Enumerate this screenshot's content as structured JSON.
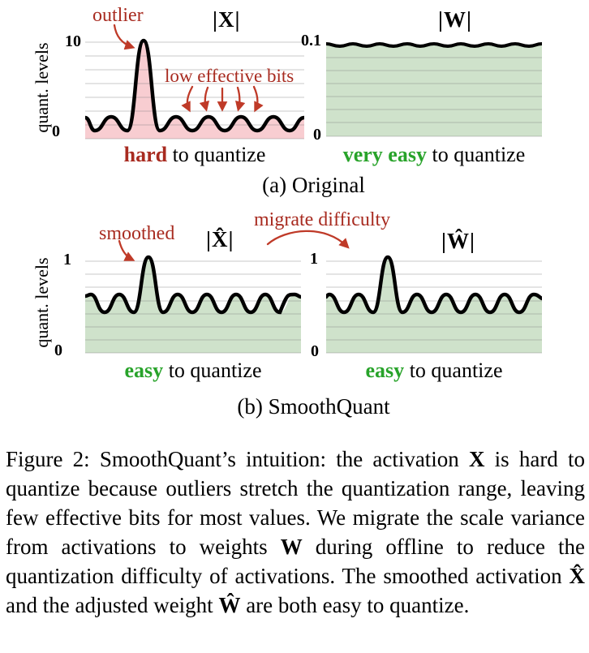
{
  "colors": {
    "annotation_red": "#a82b20",
    "arrow_red": "#bf3a28",
    "green_text": "#28a32a",
    "activation_fill": "#f8cdd1",
    "weight_fill": "#cfe2cb",
    "gridline_gray": "#808080",
    "curve_black": "#000000"
  },
  "panel_a": {
    "label": "(a) Original",
    "x_plot": {
      "title": "|X|",
      "ylabel": "quant. levels",
      "ytick_top": "10",
      "ytick_bottom": "0",
      "annotation_outlier": "outlier",
      "annotation_low_bits": "low effective bits",
      "verdict": [
        {
          "t": "hard",
          "c": "red-bold"
        },
        {
          "t": " to quantize",
          "c": ""
        }
      ]
    },
    "w_plot": {
      "title": "|W|",
      "ytick_top": "0.1",
      "ytick_bottom": "0",
      "verdict": [
        {
          "t": "very easy",
          "c": "green-bold"
        },
        {
          "t": " to quantize",
          "c": ""
        }
      ]
    }
  },
  "panel_b": {
    "label": "(b) SmoothQuant",
    "x_plot": {
      "title": "|X̂|",
      "ylabel": "quant. levels",
      "ytick_top": "1",
      "ytick_bottom": "0",
      "annotation_smoothed": "smoothed",
      "verdict": [
        {
          "t": "easy",
          "c": "green-bold"
        },
        {
          "t": " to quantize",
          "c": ""
        }
      ]
    },
    "w_plot": {
      "title": "|Ŵ|",
      "ytick_top": "1",
      "ytick_bottom": "0",
      "annotation_migrate": "migrate difficulty",
      "verdict": [
        {
          "t": "easy",
          "c": "green-bold"
        },
        {
          "t": " to quantize",
          "c": ""
        }
      ]
    }
  },
  "caption": [
    {
      "t": "Figure 2: SmoothQuant’s intuition: the activation ",
      "c": ""
    },
    {
      "t": "X",
      "c": "m"
    },
    {
      "t": " is hard to quantize because outliers stretch the quantization range, leaving few effective bits for most values. We migrate the scale variance from activations to weights ",
      "c": ""
    },
    {
      "t": "W",
      "c": "m"
    },
    {
      "t": " during offline to reduce the quantization difficulty of activations. The smoothed activation ",
      "c": ""
    },
    {
      "t": "X̂",
      "c": "m"
    },
    {
      "t": " and the adjusted weight ",
      "c": ""
    },
    {
      "t": "Ŵ",
      "c": "m"
    },
    {
      "t": " are both easy to quantize.",
      "c": ""
    }
  ],
  "chart_data": [
    {
      "id": "activation-original",
      "type": "area",
      "title": "|X|",
      "ylabel": "quant. levels",
      "ylim": [
        0,
        10
      ],
      "yticks": [
        0,
        10
      ],
      "gridlines": 8,
      "baseline_wave": {
        "min": 0.9,
        "max": 2.3,
        "n_bumps": 7
      },
      "outlier_peak": {
        "x_frac": 0.27,
        "value": 10
      },
      "fill": "#f8cdd1",
      "verdict": "hard to quantize",
      "annotations": [
        "outlier",
        "low effective bits"
      ]
    },
    {
      "id": "weight-original",
      "type": "area",
      "title": "|W|",
      "ylim": [
        0,
        0.1
      ],
      "yticks": [
        0,
        0.1
      ],
      "gridlines": 8,
      "baseline_wave": {
        "min": 0.096,
        "max": 0.1,
        "n_bumps": 8
      },
      "outlier_peak": null,
      "fill": "#cfe2cb",
      "verdict": "very easy to quantize",
      "annotations": []
    },
    {
      "id": "activation-smoothed",
      "type": "area",
      "title": "|X̂|",
      "ylabel": "quant. levels",
      "ylim": [
        0,
        1
      ],
      "yticks": [
        0,
        1
      ],
      "gridlines": 8,
      "baseline_wave": {
        "min": 0.44,
        "max": 0.64,
        "n_bumps": 7
      },
      "outlier_peak": {
        "x_frac": 0.29,
        "value": 1
      },
      "fill": "#cfe2cb",
      "verdict": "easy to quantize",
      "annotations": [
        "smoothed"
      ]
    },
    {
      "id": "weight-adjusted",
      "type": "area",
      "title": "|Ŵ|",
      "ylim": [
        0,
        1
      ],
      "yticks": [
        0,
        1
      ],
      "gridlines": 8,
      "baseline_wave": {
        "min": 0.44,
        "max": 0.64,
        "n_bumps": 7
      },
      "outlier_peak": {
        "x_frac": 0.28,
        "value": 1
      },
      "fill": "#cfe2cb",
      "verdict": "easy to quantize",
      "annotations": [
        "migrate difficulty"
      ]
    }
  ]
}
